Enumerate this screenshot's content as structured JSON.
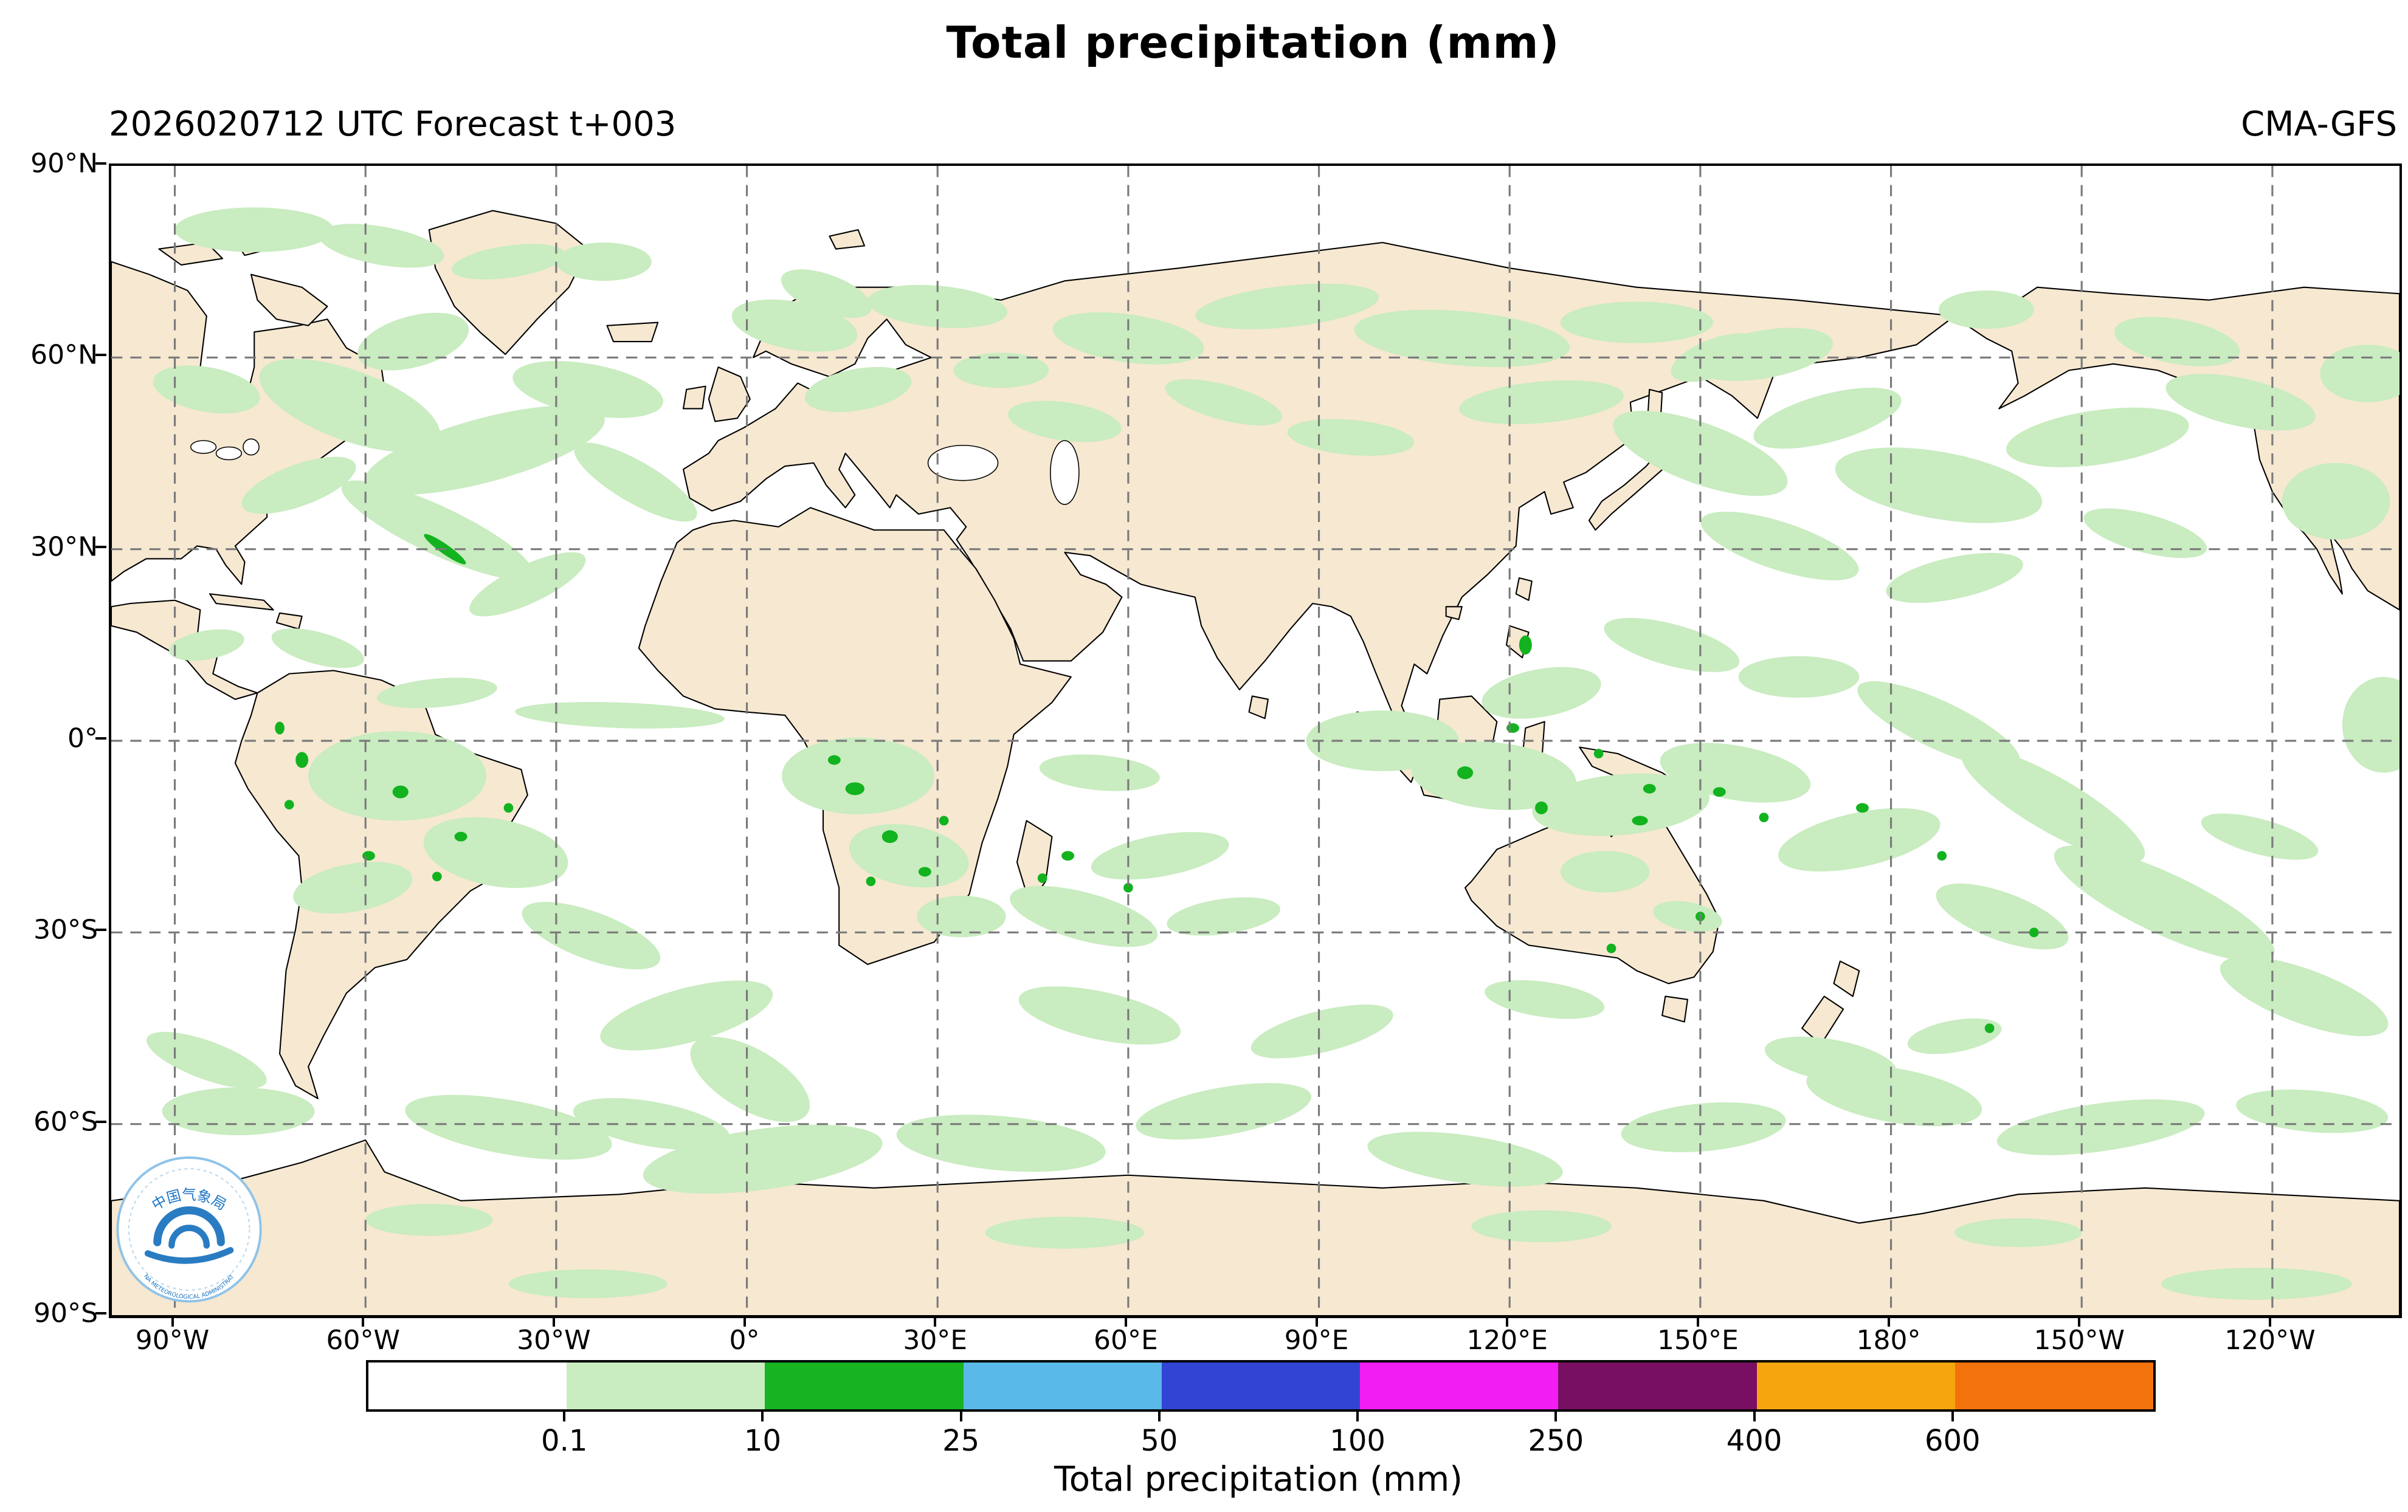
{
  "header": {
    "title": "Total precipitation (mm)",
    "subtitle": "2026020712 UTC Forecast t+003",
    "model": "CMA-GFS"
  },
  "map": {
    "yticks": [
      "90°N",
      "60°N",
      "30°N",
      "0°",
      "30°S",
      "60°S",
      "90°S"
    ],
    "xticks": [
      "90°W",
      "60°W",
      "30°W",
      "0°",
      "30°E",
      "60°E",
      "90°E",
      "120°E",
      "150°E",
      "180°",
      "150°W",
      "120°W"
    ],
    "land_color": "#f6e8d1",
    "ocean_color": "#ffffff",
    "coast_color": "#000000",
    "grid_color": "#7a7a7a",
    "precip_light": "#c9ecc0",
    "precip_dark": "#12b31f",
    "logo_top": "中国气象局",
    "logo_bottom": "CHINA METEOROLOGICAL ADMINISTRATION"
  },
  "colorbar": {
    "labels": [
      "0.1",
      "10",
      "25",
      "50",
      "100",
      "250",
      "400",
      "600"
    ],
    "colors": [
      "#ffffff",
      "#c9ecc0",
      "#17b322",
      "#59b9e8",
      "#3144d3",
      "#f21df2",
      "#790f62",
      "#f5a60e",
      "#f2720c"
    ],
    "caption": "Total precipitation (mm)"
  }
}
